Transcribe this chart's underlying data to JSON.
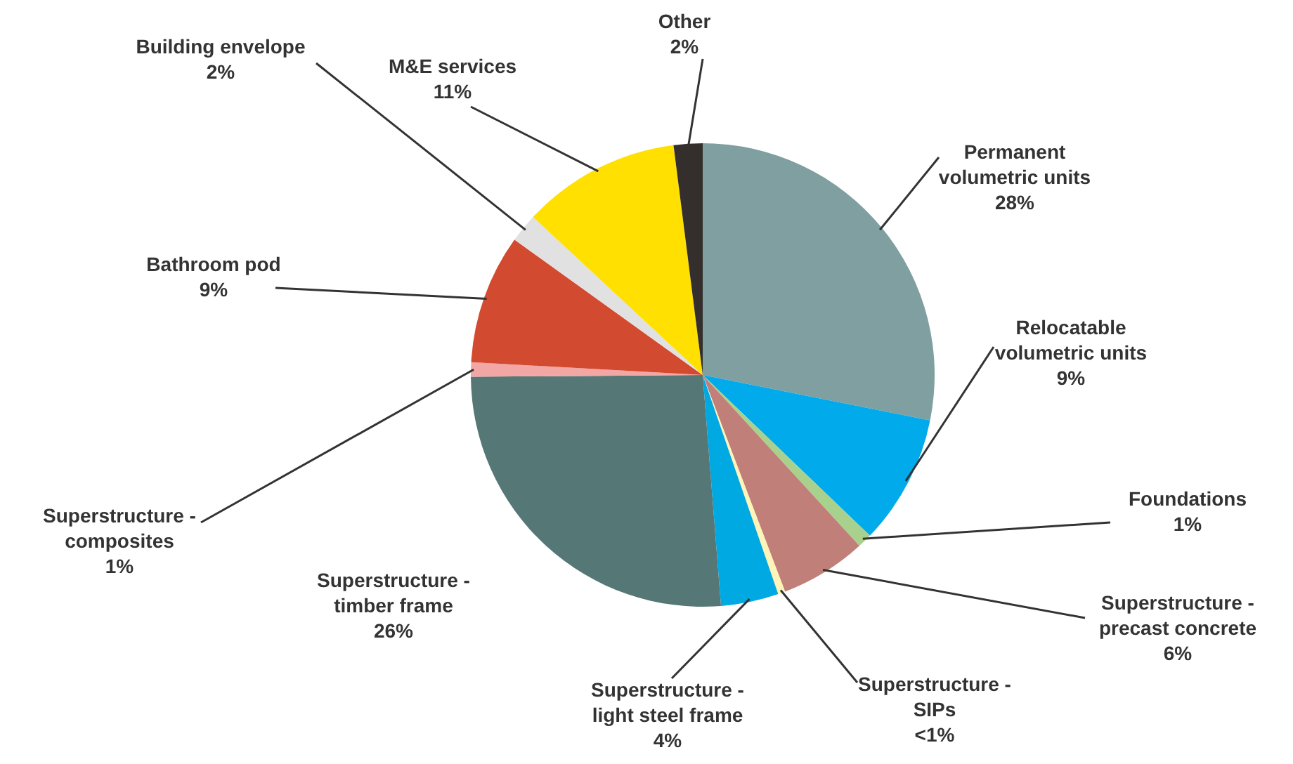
{
  "chart_data": {
    "type": "pie",
    "categories": [
      "Permanent volumetric units",
      "Relocatable volumetric units",
      "Foundations",
      "Superstructure - precast concrete",
      "Superstructure - SIPs",
      "Superstructure - light steel frame",
      "Superstructure - timber frame",
      "Superstructure - composites",
      "Bathroom pod",
      "Building envelope",
      "M&E services",
      "Other"
    ],
    "values": [
      28,
      9,
      1,
      6,
      0.5,
      4,
      26,
      1,
      9,
      2,
      11,
      2
    ],
    "value_labels": [
      "28%",
      "9%",
      "1%",
      "6%",
      "<1%",
      "4%",
      "26%",
      "1%",
      "9%",
      "2%",
      "11%",
      "2%"
    ],
    "colors": [
      "#7f9fa1",
      "#00aaeb",
      "#a9d18e",
      "#c07f78",
      "#fff3b8",
      "#00a9e2",
      "#557776",
      "#f2a7a5",
      "#d24a2f",
      "#e1e1e1",
      "#ffe000",
      "#342e2c"
    ]
  }
}
